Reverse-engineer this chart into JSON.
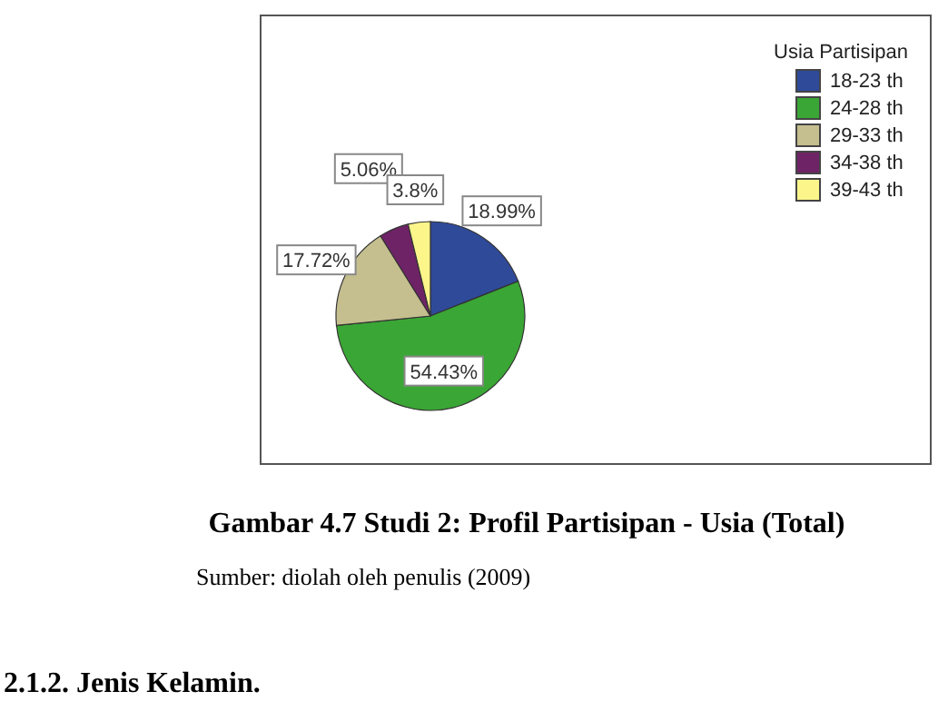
{
  "chart_data": {
    "type": "pie",
    "title": "Gambar 4.7  Studi 2: Profil Partisipan - Usia (Total)",
    "legend_title": "Usia Partisipan",
    "legend": "top right",
    "categories": [
      "18-23 th",
      "24-28 th",
      "29-33 th",
      "34-38 th",
      "39-43 th"
    ],
    "values": [
      18.99,
      54.43,
      17.72,
      5.06,
      3.8
    ],
    "value_labels": [
      "18.99%",
      "54.43%",
      "17.72%",
      "5.06%",
      "3.8%"
    ],
    "colors": [
      "#2f4a99",
      "#3aa635",
      "#c5be8e",
      "#6e2366",
      "#fbf58a"
    ],
    "annotations": [
      "Sumber: diolah oleh penulis (2009)",
      "2.1.2.  Jenis Kelamin."
    ]
  }
}
